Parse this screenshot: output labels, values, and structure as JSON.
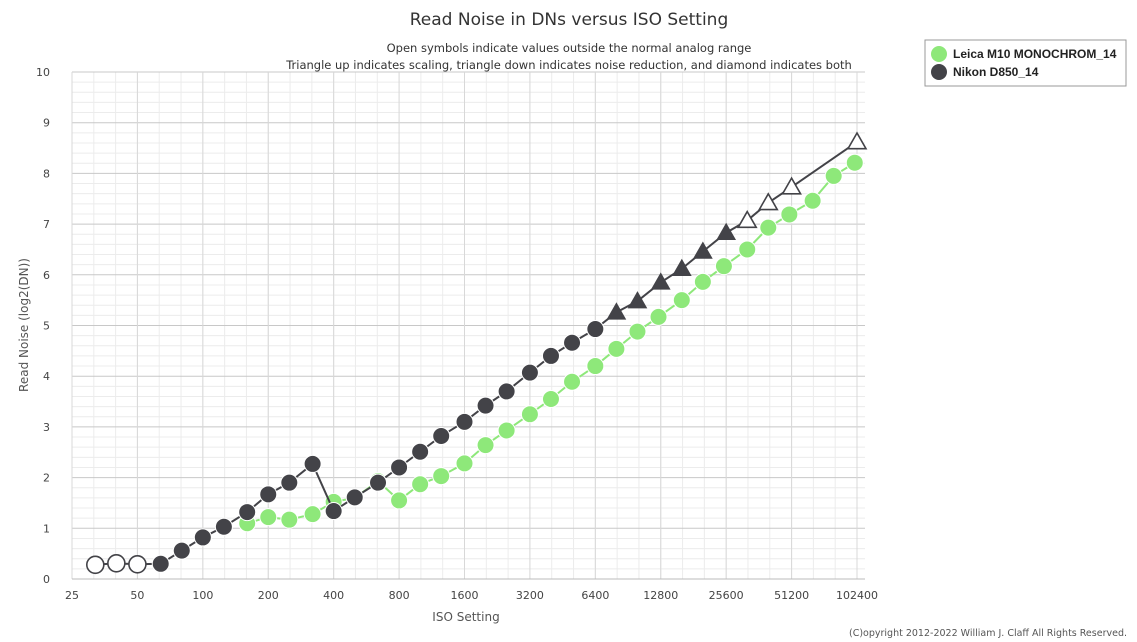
{
  "chart_data": {
    "type": "line",
    "title": "Read Noise in DNs versus ISO Setting",
    "subtitle_lines": [
      "Open symbols indicate values outside the normal analog range",
      "Triangle up indicates scaling, triangle down indicates noise reduction, and diamond indicates both"
    ],
    "xlabel": "ISO Setting",
    "ylabel": "Read Noise (log2(DN))",
    "x_scale": "log2",
    "x_tick_labels": [
      "25",
      "50",
      "100",
      "200",
      "400",
      "800",
      "1600",
      "3200",
      "6400",
      "12800",
      "25600",
      "51200",
      "102400"
    ],
    "x_range": [
      25,
      102400
    ],
    "y_range": [
      0,
      10
    ],
    "y_ticks": [
      0,
      1,
      2,
      3,
      4,
      5,
      6,
      7,
      8,
      9,
      10
    ],
    "grid": true,
    "legend_position": "top-right",
    "series": [
      {
        "name": "Leica M10 MONOCHROM_14",
        "color": "#8ee87a",
        "points": [
          {
            "iso": 160,
            "value": 1.1,
            "marker": "circle"
          },
          {
            "iso": 200,
            "value": 1.22,
            "marker": "circle"
          },
          {
            "iso": 250,
            "value": 1.17,
            "marker": "circle"
          },
          {
            "iso": 320,
            "value": 1.28,
            "marker": "circle"
          },
          {
            "iso": 400,
            "value": 1.52,
            "marker": "circle"
          },
          {
            "iso": 500,
            "value": 1.6,
            "marker": "circle"
          },
          {
            "iso": 640,
            "value": 1.93,
            "marker": "circle"
          },
          {
            "iso": 800,
            "value": 1.55,
            "marker": "circle"
          },
          {
            "iso": 1000,
            "value": 1.87,
            "marker": "circle"
          },
          {
            "iso": 1250,
            "value": 2.03,
            "marker": "circle"
          },
          {
            "iso": 1600,
            "value": 2.28,
            "marker": "circle"
          },
          {
            "iso": 2000,
            "value": 2.64,
            "marker": "circle"
          },
          {
            "iso": 2500,
            "value": 2.93,
            "marker": "circle"
          },
          {
            "iso": 3200,
            "value": 3.25,
            "marker": "circle"
          },
          {
            "iso": 4000,
            "value": 3.55,
            "marker": "circle"
          },
          {
            "iso": 5000,
            "value": 3.89,
            "marker": "circle"
          },
          {
            "iso": 6400,
            "value": 4.2,
            "marker": "circle"
          },
          {
            "iso": 8000,
            "value": 4.54,
            "marker": "circle"
          },
          {
            "iso": 10000,
            "value": 4.88,
            "marker": "circle"
          },
          {
            "iso": 12500,
            "value": 5.17,
            "marker": "circle"
          },
          {
            "iso": 16000,
            "value": 5.5,
            "marker": "circle"
          },
          {
            "iso": 20000,
            "value": 5.86,
            "marker": "circle"
          },
          {
            "iso": 25000,
            "value": 6.17,
            "marker": "circle"
          },
          {
            "iso": 32000,
            "value": 6.5,
            "marker": "circle"
          },
          {
            "iso": 40000,
            "value": 6.93,
            "marker": "circle"
          },
          {
            "iso": 50000,
            "value": 7.19,
            "marker": "circle"
          },
          {
            "iso": 64000,
            "value": 7.46,
            "marker": "circle"
          },
          {
            "iso": 80000,
            "value": 7.95,
            "marker": "circle"
          },
          {
            "iso": 100000,
            "value": 8.21,
            "marker": "circle"
          }
        ]
      },
      {
        "name": "Nikon D850_14",
        "color": "#434348",
        "points": [
          {
            "iso": 32,
            "value": 0.28,
            "marker": "circle-open"
          },
          {
            "iso": 40,
            "value": 0.31,
            "marker": "circle-open"
          },
          {
            "iso": 50,
            "value": 0.29,
            "marker": "circle-open"
          },
          {
            "iso": 64,
            "value": 0.3,
            "marker": "circle"
          },
          {
            "iso": 80,
            "value": 0.56,
            "marker": "circle"
          },
          {
            "iso": 100,
            "value": 0.82,
            "marker": "circle"
          },
          {
            "iso": 125,
            "value": 1.03,
            "marker": "circle"
          },
          {
            "iso": 160,
            "value": 1.32,
            "marker": "circle"
          },
          {
            "iso": 200,
            "value": 1.67,
            "marker": "circle"
          },
          {
            "iso": 250,
            "value": 1.9,
            "marker": "circle"
          },
          {
            "iso": 320,
            "value": 2.27,
            "marker": "circle"
          },
          {
            "iso": 400,
            "value": 1.34,
            "marker": "circle"
          },
          {
            "iso": 500,
            "value": 1.61,
            "marker": "circle"
          },
          {
            "iso": 640,
            "value": 1.9,
            "marker": "circle"
          },
          {
            "iso": 800,
            "value": 2.2,
            "marker": "circle"
          },
          {
            "iso": 1000,
            "value": 2.51,
            "marker": "circle"
          },
          {
            "iso": 1250,
            "value": 2.82,
            "marker": "circle"
          },
          {
            "iso": 1600,
            "value": 3.1,
            "marker": "circle"
          },
          {
            "iso": 2000,
            "value": 3.42,
            "marker": "circle"
          },
          {
            "iso": 2500,
            "value": 3.7,
            "marker": "circle"
          },
          {
            "iso": 3200,
            "value": 4.07,
            "marker": "circle"
          },
          {
            "iso": 4000,
            "value": 4.4,
            "marker": "circle"
          },
          {
            "iso": 5000,
            "value": 4.66,
            "marker": "circle"
          },
          {
            "iso": 6400,
            "value": 4.93,
            "marker": "circle"
          },
          {
            "iso": 8000,
            "value": 5.26,
            "marker": "triangle"
          },
          {
            "iso": 10000,
            "value": 5.48,
            "marker": "triangle"
          },
          {
            "iso": 12800,
            "value": 5.85,
            "marker": "triangle"
          },
          {
            "iso": 16000,
            "value": 6.12,
            "marker": "triangle"
          },
          {
            "iso": 20000,
            "value": 6.46,
            "marker": "triangle"
          },
          {
            "iso": 25600,
            "value": 6.83,
            "marker": "triangle"
          },
          {
            "iso": 32000,
            "value": 7.07,
            "marker": "triangle-open"
          },
          {
            "iso": 40000,
            "value": 7.42,
            "marker": "triangle-open"
          },
          {
            "iso": 51200,
            "value": 7.73,
            "marker": "triangle-open"
          },
          {
            "iso": 102400,
            "value": 8.62,
            "marker": "triangle-open"
          }
        ]
      }
    ]
  },
  "copyright": "(C)opyright 2012-2022 William J. Claff All Rights Reserved."
}
